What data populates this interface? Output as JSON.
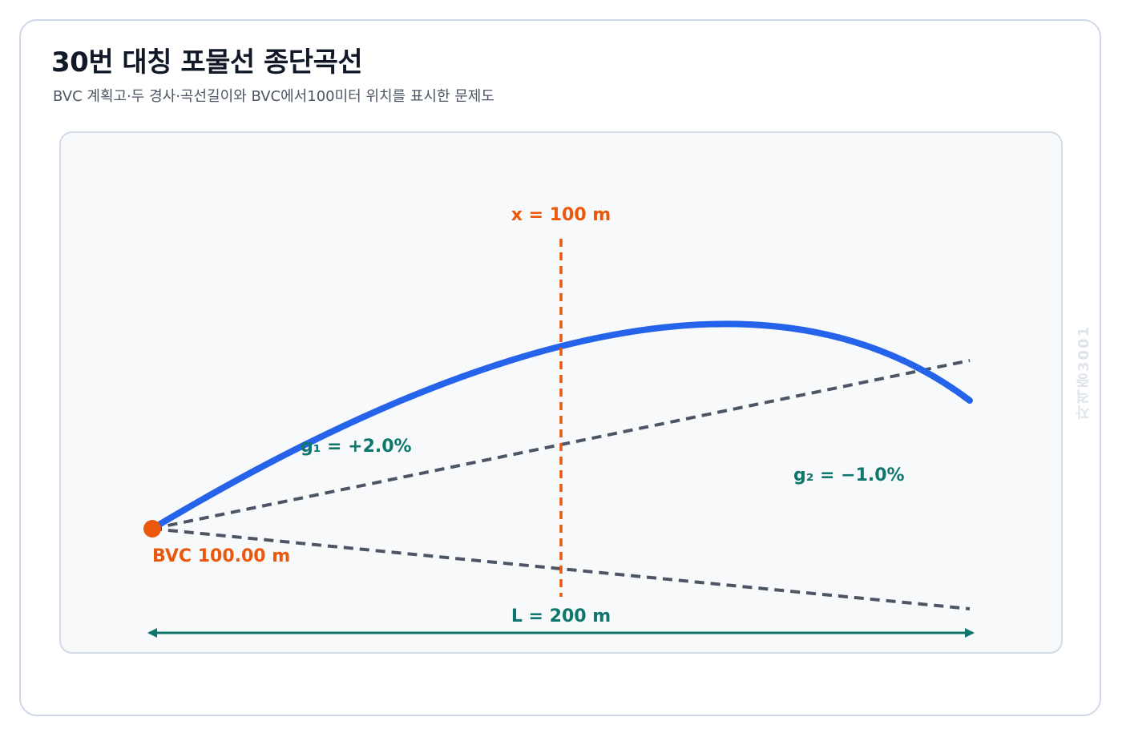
{
  "header": {
    "title": "30번 대칭 포물선 종단곡선",
    "subtitle": "BVC 계획고·두 경사·곡선길이와 BVC에서100미터 위치를 표시한 문제도"
  },
  "diagram": {
    "x_label": "x = 100 m",
    "g1_label": "g₁ = +2.0%",
    "g2_label": "g₂ = −1.0%",
    "bvc_label": "BVC 100.00 m",
    "length_label": "L = 200 m"
  },
  "watermark": "자격증3001",
  "colors": {
    "curve": "#2563eb",
    "tangent": "#4b5563",
    "marker": "#ea580c",
    "annotation": "#0f766e"
  }
}
